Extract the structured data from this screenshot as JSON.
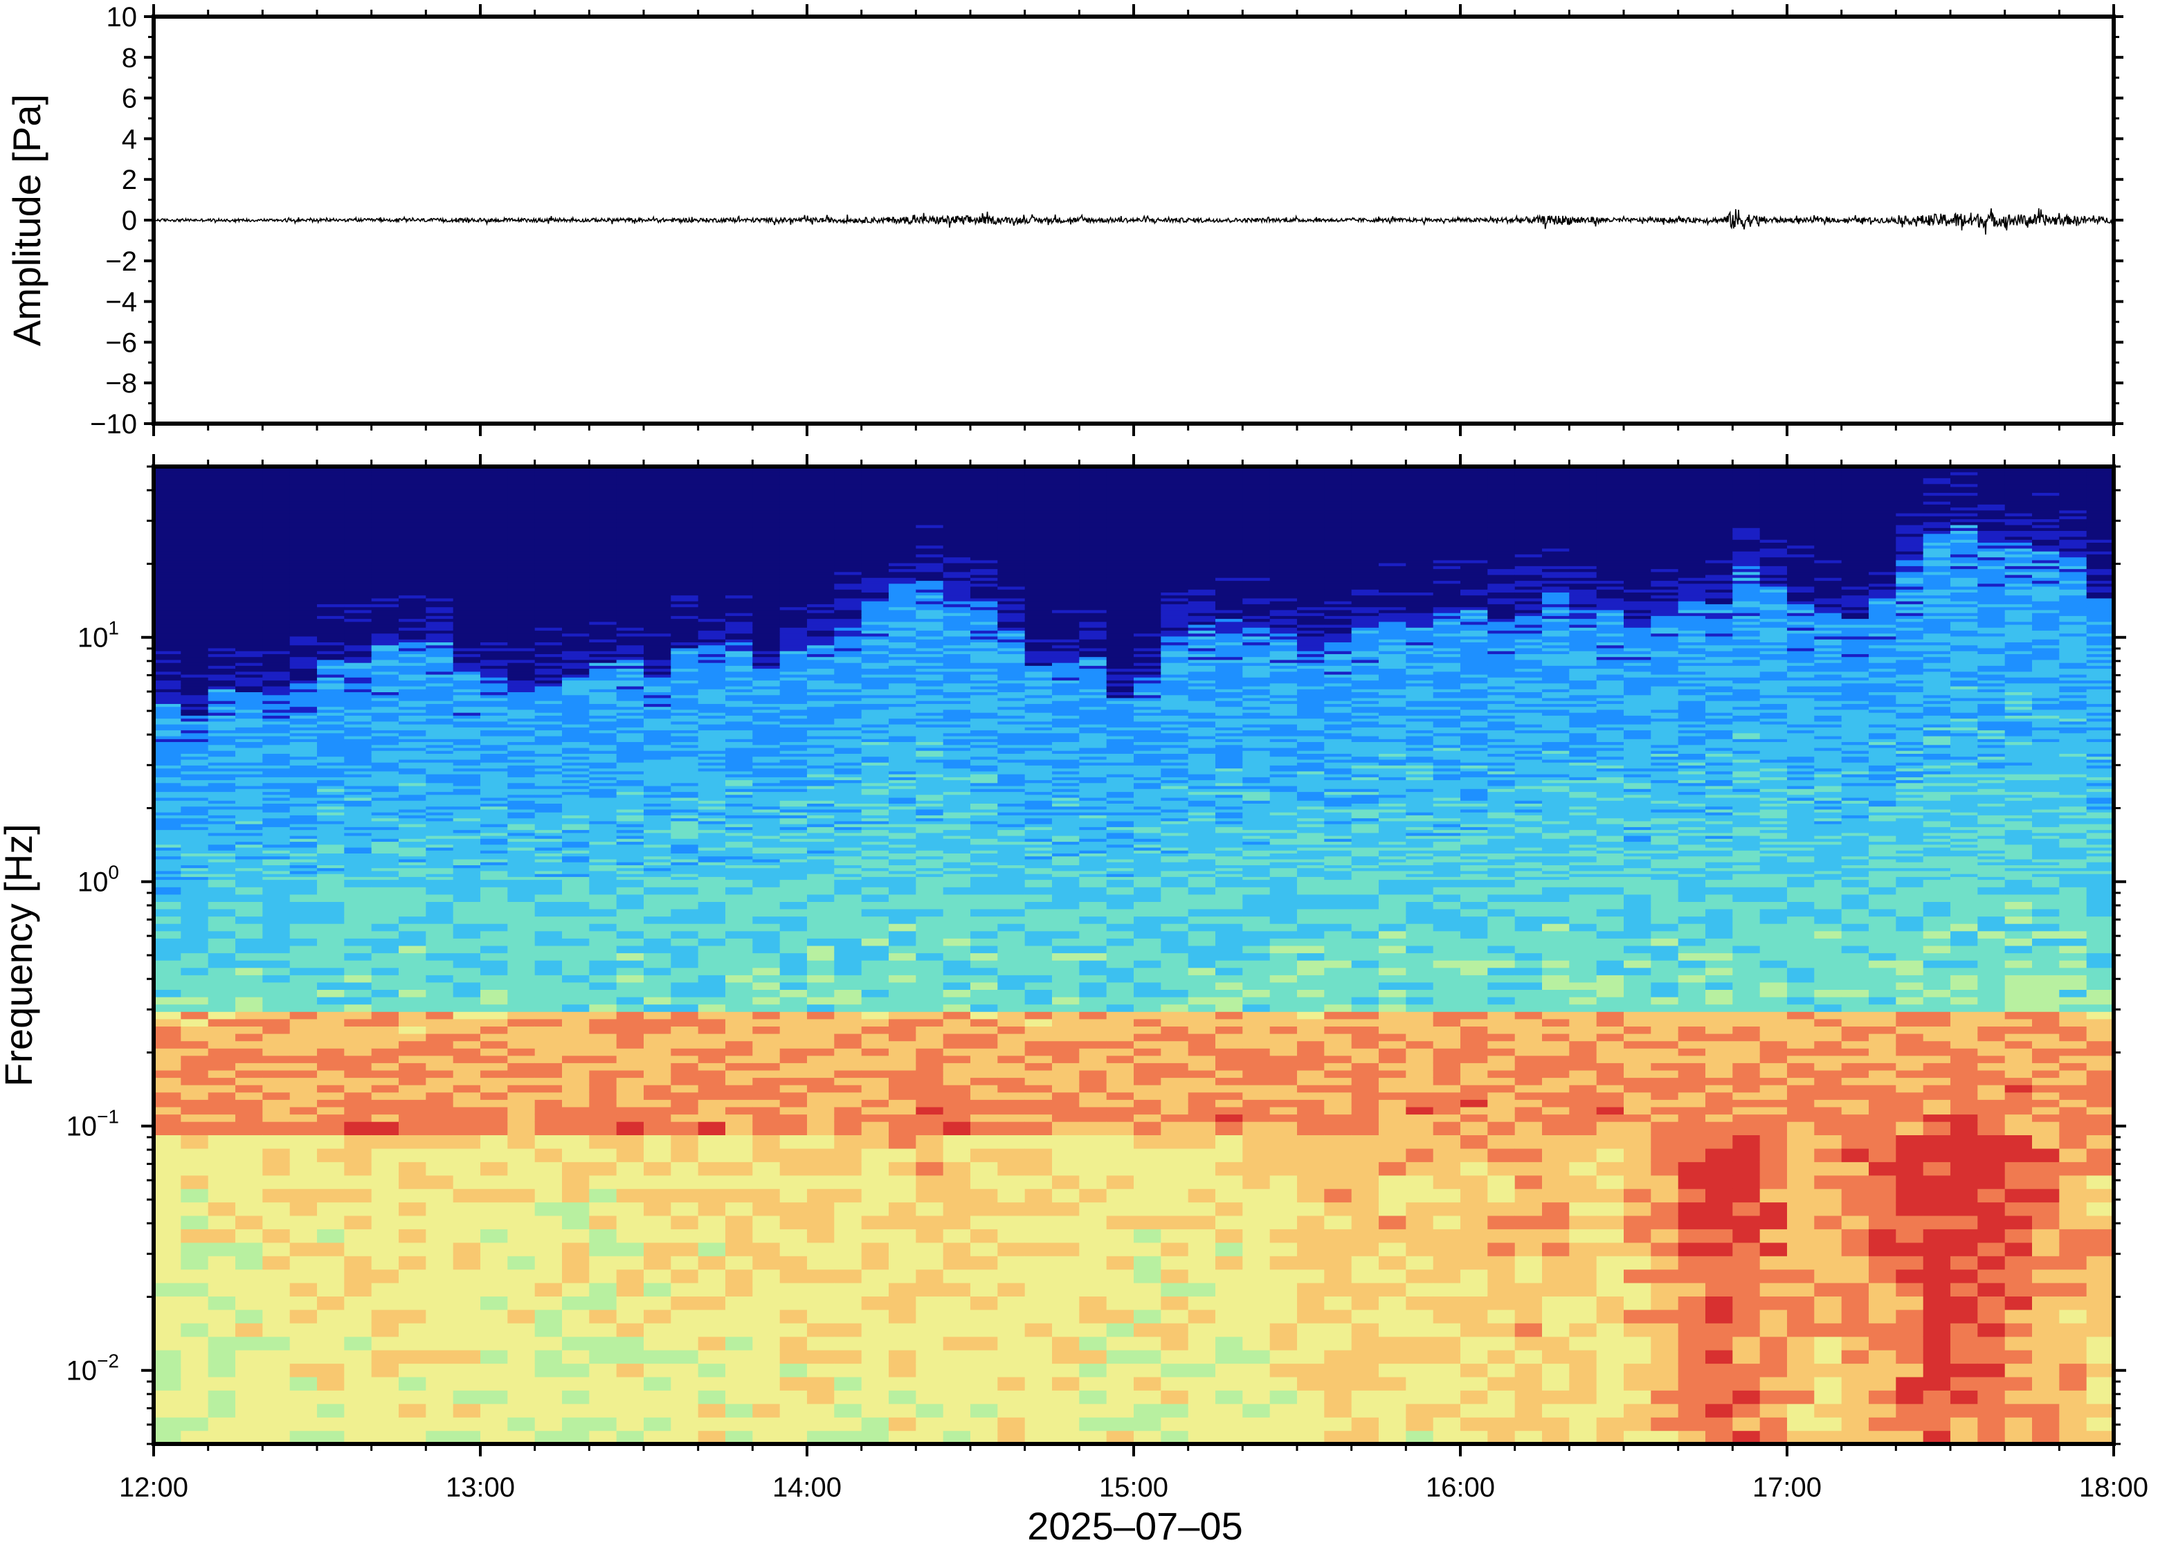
{
  "chart_data": [
    {
      "type": "line",
      "panel": "waveform",
      "ylabel": "Amplitude [Pa]",
      "ylim": [
        -10,
        10
      ],
      "yticks": [
        10,
        8,
        6,
        4,
        2,
        0,
        -2,
        -4,
        -6,
        -8,
        -10
      ],
      "ytick_labels": [
        "10",
        "8",
        "6",
        "4",
        "2",
        "0",
        "−2",
        "−4",
        "−6",
        "−8",
        "−10"
      ],
      "xlim": [
        "12:00",
        "18:00"
      ],
      "line_color": "#000000",
      "series": [
        {
          "x_hours": [
            12.0,
            12.5,
            13.0,
            13.5,
            14.0,
            14.2,
            14.4,
            14.5,
            14.6,
            14.8,
            15.0,
            15.5,
            16.0,
            16.2,
            16.3,
            16.5,
            16.8,
            16.85,
            16.9,
            17.0,
            17.2,
            17.3,
            17.4,
            17.5,
            17.55,
            17.6,
            17.7,
            17.8,
            17.9,
            18.0
          ],
          "envelope": [
            0.15,
            0.15,
            0.2,
            0.2,
            0.25,
            0.3,
            0.45,
            0.5,
            0.35,
            0.3,
            0.25,
            0.2,
            0.2,
            0.35,
            0.55,
            0.2,
            0.3,
            1.4,
            0.5,
            0.25,
            0.25,
            0.3,
            0.5,
            0.8,
            0.9,
            0.75,
            0.65,
            0.6,
            0.45,
            0.3
          ]
        }
      ]
    },
    {
      "type": "heatmap",
      "panel": "spectrogram",
      "ylabel": "Frequency [Hz]",
      "xlabel": "2025–07–05",
      "yscale": "log",
      "ylim_hz": [
        0.005,
        50
      ],
      "yticks": [
        {
          "base": "10",
          "exp": "1",
          "value": 10
        },
        {
          "base": "10",
          "exp": "0",
          "value": 1
        },
        {
          "base": "10",
          "exp": "−1",
          "value": 0.1
        },
        {
          "base": "10",
          "exp": "−2",
          "value": 0.01
        }
      ],
      "xticks": [
        "12:00",
        "13:00",
        "14:00",
        "15:00",
        "16:00",
        "17:00",
        "18:00"
      ],
      "colormap": [
        "#0d0a7a",
        "#1a1fc4",
        "#1e90ff",
        "#3cc0f0",
        "#70e0c8",
        "#b8f0a0",
        "#f0f090",
        "#f8c870",
        "#f07a50",
        "#d83030"
      ],
      "description_fields": {
        "energy_cutoff_hz_per_hour": [
          [
            12.0,
            5
          ],
          [
            12.4,
            6
          ],
          [
            12.8,
            9
          ],
          [
            13.2,
            6
          ],
          [
            13.6,
            8
          ],
          [
            14.0,
            9
          ],
          [
            14.4,
            17
          ],
          [
            14.6,
            10
          ],
          [
            15.0,
            6
          ],
          [
            15.3,
            13
          ],
          [
            15.6,
            9
          ],
          [
            16.0,
            12
          ],
          [
            16.3,
            14
          ],
          [
            16.6,
            12
          ],
          [
            16.9,
            18
          ],
          [
            17.0,
            12
          ],
          [
            17.3,
            14
          ],
          [
            17.5,
            30
          ],
          [
            17.7,
            25
          ],
          [
            18.0,
            14
          ]
        ],
        "hotspot_activity_per_hour": [
          [
            12.0,
            0.25
          ],
          [
            12.4,
            0.35
          ],
          [
            12.8,
            0.4
          ],
          [
            13.2,
            0.3
          ],
          [
            13.6,
            0.35
          ],
          [
            14.0,
            0.4
          ],
          [
            14.4,
            0.45
          ],
          [
            14.6,
            0.4
          ],
          [
            15.0,
            0.35
          ],
          [
            15.3,
            0.35
          ],
          [
            15.6,
            0.5
          ],
          [
            15.9,
            0.45
          ],
          [
            16.2,
            0.55
          ],
          [
            16.5,
            0.45
          ],
          [
            16.8,
            0.95
          ],
          [
            16.9,
            0.85
          ],
          [
            17.1,
            0.55
          ],
          [
            17.3,
            0.75
          ],
          [
            17.45,
            0.95
          ],
          [
            17.6,
            0.9
          ],
          [
            17.8,
            0.7
          ],
          [
            18.0,
            0.5
          ]
        ]
      }
    }
  ]
}
